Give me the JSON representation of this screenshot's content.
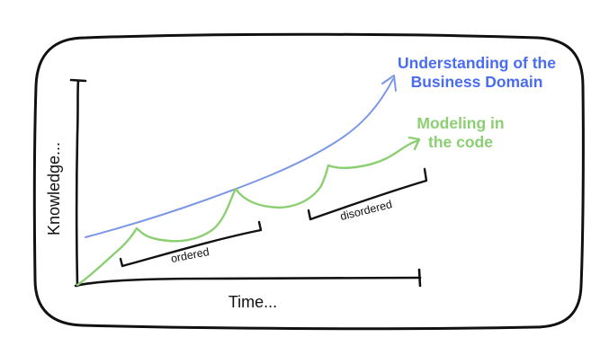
{
  "diagram": {
    "axes": {
      "y_label": "Knowledge...",
      "x_label": "Time..."
    },
    "curves": {
      "business": {
        "label_line1": "Understanding of the",
        "label_line2": "Business Domain",
        "color": "#4a6cf0"
      },
      "modeling": {
        "label_line1": "Modeling in",
        "label_line2": "the code",
        "color": "#8ccf73"
      }
    },
    "brackets": {
      "ordered": "ordered",
      "disordered": "disordered"
    }
  }
}
